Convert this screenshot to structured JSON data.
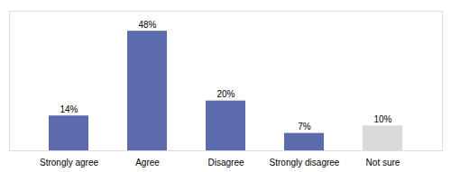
{
  "chart_data": {
    "type": "bar",
    "categories": [
      "Strongly agree",
      "Agree",
      "Disagree",
      "Strongly disagree",
      "Not sure"
    ],
    "values": [
      14,
      48,
      20,
      7,
      10
    ],
    "value_labels": [
      "14%",
      "48%",
      "20%",
      "7%",
      "10%"
    ],
    "colors": [
      "#5b6bab",
      "#5b6bab",
      "#5b6bab",
      "#5b6bab",
      "#d9d9d9"
    ],
    "ylim": [
      0,
      56
    ],
    "data_labels": true,
    "tick_labels": "x",
    "grid": false
  }
}
